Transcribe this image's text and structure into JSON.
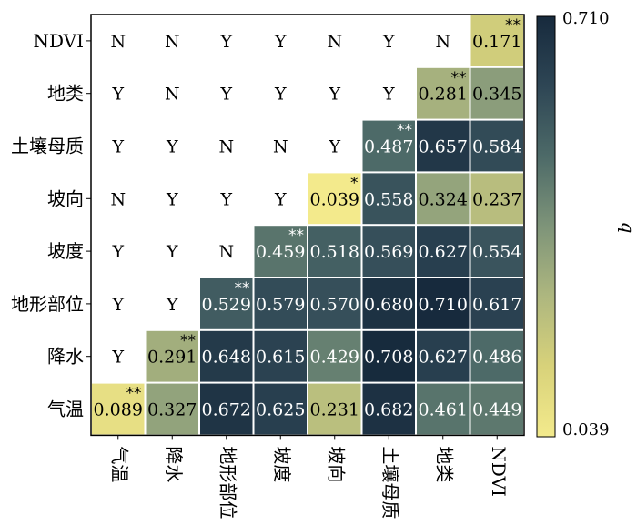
{
  "chart_data": {
    "type": "heatmap",
    "row_labels": [
      "NDVI",
      "地类",
      "土壤母质",
      "坡向",
      "坡度",
      "地形部位",
      "降水",
      "气温"
    ],
    "col_labels": [
      "气温",
      "降水",
      "地形部位",
      "坡度",
      "坡向",
      "土壤母质",
      "地类",
      "NDVI"
    ],
    "cells": [
      [
        "N",
        "N",
        "Y",
        "Y",
        "N",
        "Y",
        "N",
        0.171
      ],
      [
        "Y",
        "N",
        "Y",
        "Y",
        "Y",
        "Y",
        0.281,
        0.345
      ],
      [
        "Y",
        "Y",
        "N",
        "N",
        "Y",
        0.487,
        0.657,
        0.584
      ],
      [
        "N",
        "Y",
        "Y",
        "Y",
        0.039,
        0.558,
        0.324,
        0.237
      ],
      [
        "Y",
        "Y",
        "N",
        0.459,
        0.518,
        0.569,
        0.627,
        0.554
      ],
      [
        "Y",
        "Y",
        0.529,
        0.579,
        0.57,
        0.68,
        0.71,
        0.617
      ],
      [
        "Y",
        0.291,
        0.648,
        0.615,
        0.429,
        0.708,
        0.627,
        0.486
      ],
      [
        0.089,
        0.327,
        0.672,
        0.625,
        0.231,
        0.682,
        0.461,
        0.449
      ]
    ],
    "diagonal_significance": [
      "**",
      "**",
      "**",
      "*",
      "**",
      "**",
      "**",
      "**"
    ],
    "value_format_decimals": 3,
    "colorbar": {
      "min": 0.039,
      "max": 0.71,
      "min_label": "0.039",
      "max_label": "0.710",
      "label": "q",
      "colors": [
        "#f3ea8c",
        "#d8d27a",
        "#aeb77f",
        "#7e9479",
        "#4d6a68",
        "#2e4655",
        "#172a3d"
      ]
    }
  }
}
